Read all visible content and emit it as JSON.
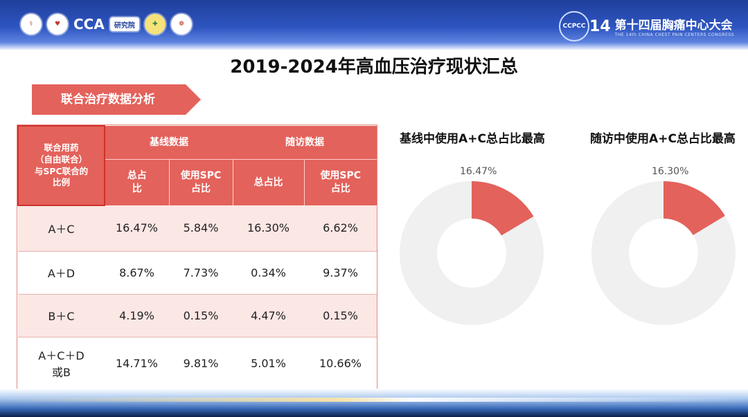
{
  "header": {
    "logos": [
      "logo-1",
      "CCA",
      "研究院",
      "logo-4",
      "logo-5"
    ],
    "cca_text": "CCA",
    "lab_text": "研究院",
    "ccpcc_badge": "CCPCC",
    "ccpcc_number": "14",
    "congress_title": "第十四届胸痛中心大会",
    "congress_subtitle": "THE 14th CHINA CHEST PAIN CENTERS CONGRESS"
  },
  "page_title": "2019-2024年高血压治疗现状汇总",
  "section_tag": "联合治疗数据分析",
  "table": {
    "corner_header": [
      "联合用药",
      "（自由联合）",
      "与SPC联合的",
      "比例"
    ],
    "group_headers": [
      "基线数据",
      "随访数据"
    ],
    "sub_headers": [
      [
        "总占",
        "比"
      ],
      [
        "使用SPC",
        "占比"
      ],
      [
        "总占比"
      ],
      [
        "使用SPC",
        "占比"
      ]
    ],
    "rows": [
      {
        "label": "A＋C",
        "cells": [
          "16.47%",
          "5.84%",
          "16.30%",
          "6.62%"
        ]
      },
      {
        "label": "A＋D",
        "cells": [
          "8.67%",
          "7.73%",
          "0.34%",
          "9.37%"
        ]
      },
      {
        "label": "B＋C",
        "cells": [
          "4.19%",
          "0.15%",
          "4.47%",
          "0.15%"
        ]
      },
      {
        "label": [
          "A＋C＋D",
          "或B"
        ],
        "cells": [
          "14.71%",
          "9.81%",
          "5.01%",
          "10.66%"
        ]
      }
    ]
  },
  "charts": [
    {
      "title": "基线中使用A+C总占比最高",
      "value_label": "16.47%",
      "value": 16.47
    },
    {
      "title": "随访中使用A+C总占比最高",
      "value_label": "16.30%",
      "value": 16.3
    }
  ],
  "colors": {
    "accent": "#e3625b",
    "ring": "#f0f0f0",
    "row_pink": "#fbe7e4"
  }
}
